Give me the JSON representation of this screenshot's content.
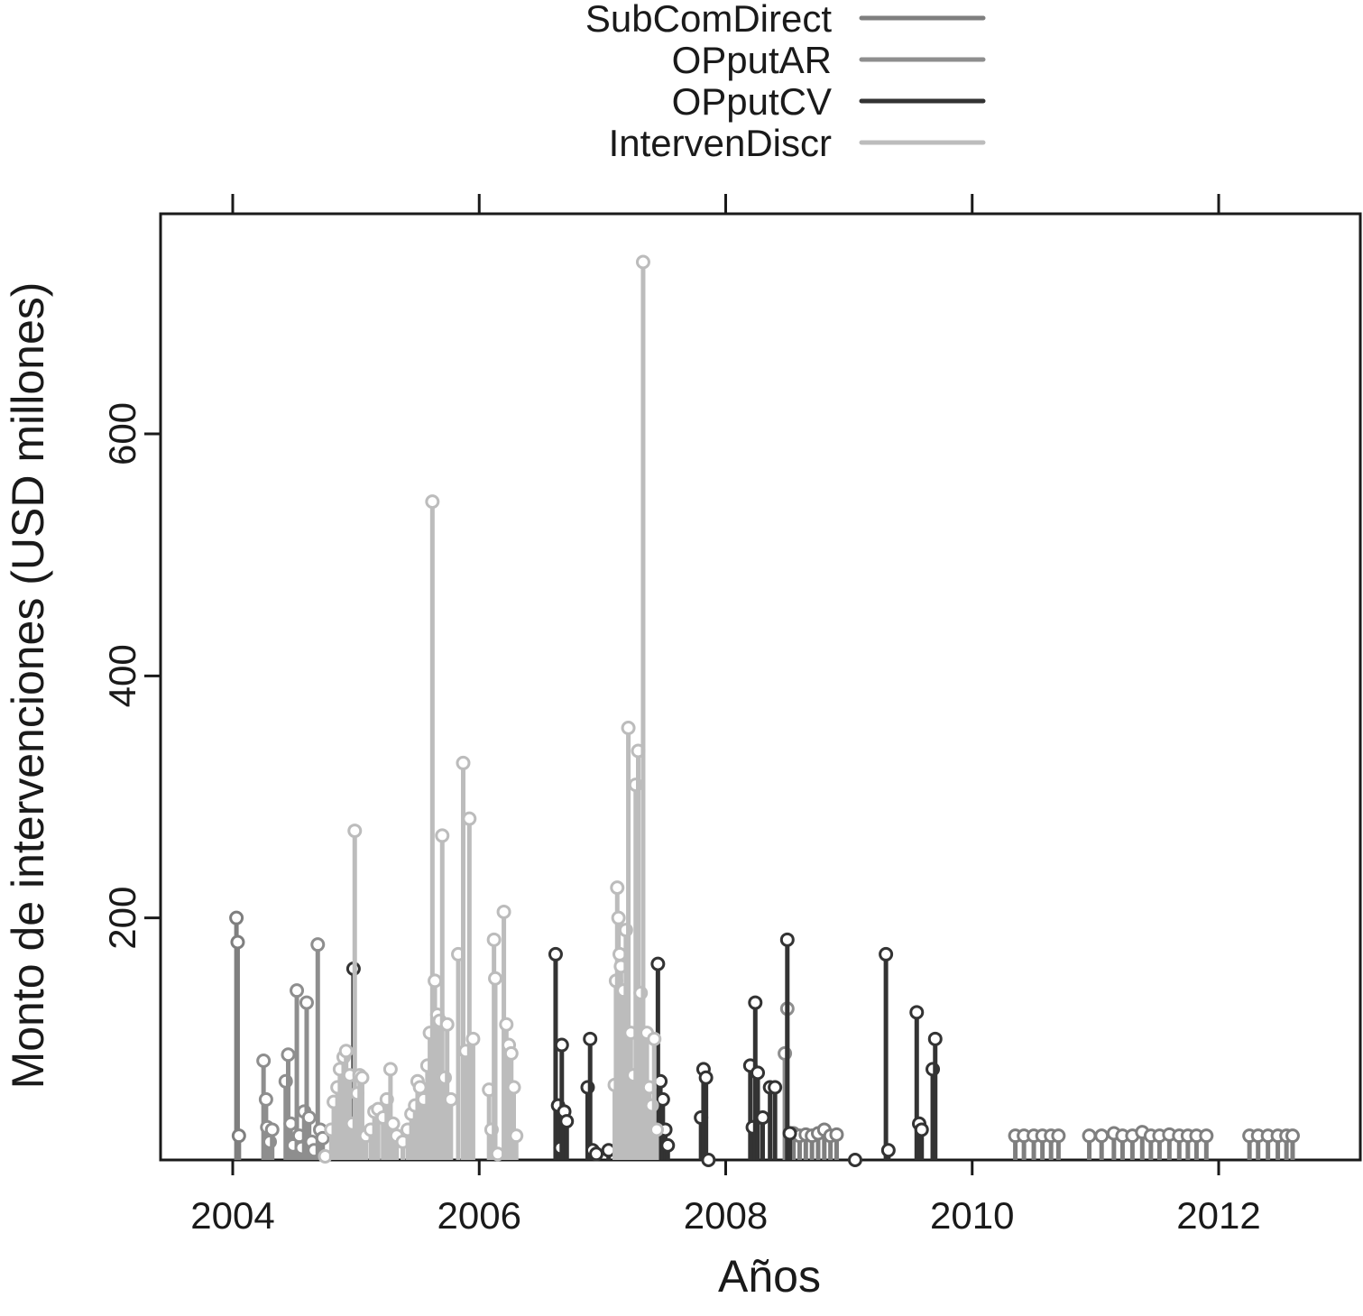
{
  "chart_data": {
    "type": "scatter",
    "title": "",
    "xlabel": "Años",
    "ylabel": "Monto de intervenciones (USD millones)",
    "xlim": [
      2003.4,
      2013.1
    ],
    "ylim": [
      0,
      780
    ],
    "xticks": [
      2004,
      2006,
      2008,
      2010,
      2012
    ],
    "xtick_labels": [
      "2004",
      "2006",
      "2008",
      "2010",
      "2012"
    ],
    "yticks": [
      200,
      400,
      600
    ],
    "ytick_labels": [
      "200",
      "400",
      "600"
    ],
    "top_ticks": true,
    "grid": false,
    "legend_position": "top",
    "mark_style": "vertical lines from zero, open circle at each value",
    "series": [
      {
        "name": "SubComDirect",
        "color": "#7f7f7f",
        "points": [
          [
            2004.03,
            200
          ],
          [
            2004.04,
            180
          ],
          [
            2004.05,
            20
          ],
          [
            2008.55,
            22
          ],
          [
            2008.6,
            20
          ],
          [
            2008.65,
            21
          ],
          [
            2008.7,
            20
          ],
          [
            2008.75,
            22
          ],
          [
            2008.8,
            25
          ],
          [
            2008.85,
            20
          ],
          [
            2008.9,
            21
          ],
          [
            2010.35,
            20
          ],
          [
            2010.42,
            20
          ],
          [
            2010.5,
            20
          ],
          [
            2010.57,
            20
          ],
          [
            2010.64,
            20
          ],
          [
            2010.7,
            20
          ],
          [
            2010.95,
            20
          ],
          [
            2011.05,
            20
          ],
          [
            2011.15,
            22
          ],
          [
            2011.22,
            20
          ],
          [
            2011.3,
            20
          ],
          [
            2011.38,
            23
          ],
          [
            2011.45,
            20
          ],
          [
            2011.52,
            20
          ],
          [
            2011.6,
            21
          ],
          [
            2011.68,
            20
          ],
          [
            2011.75,
            20
          ],
          [
            2011.82,
            20
          ],
          [
            2011.9,
            20
          ],
          [
            2012.25,
            20
          ],
          [
            2012.32,
            20
          ],
          [
            2012.4,
            20
          ],
          [
            2012.48,
            20
          ],
          [
            2012.55,
            20
          ],
          [
            2012.6,
            20
          ]
        ]
      },
      {
        "name": "OPputAR",
        "color": "#8e8e8e",
        "points": [
          [
            2004.25,
            82
          ],
          [
            2004.27,
            50
          ],
          [
            2004.28,
            27
          ],
          [
            2004.3,
            15
          ],
          [
            2004.32,
            25
          ],
          [
            2004.43,
            65
          ],
          [
            2004.45,
            87
          ],
          [
            2004.47,
            30
          ],
          [
            2004.49,
            12
          ],
          [
            2004.52,
            140
          ],
          [
            2004.54,
            20
          ],
          [
            2004.56,
            10
          ],
          [
            2004.58,
            40
          ],
          [
            2004.6,
            130
          ],
          [
            2004.62,
            35
          ],
          [
            2004.64,
            15
          ],
          [
            2004.66,
            8
          ],
          [
            2004.69,
            178
          ],
          [
            2004.71,
            25
          ],
          [
            2004.73,
            18
          ],
          [
            2008.48,
            88
          ],
          [
            2008.5,
            125
          ]
        ]
      },
      {
        "name": "OPputCV",
        "color": "#333333",
        "points": [
          [
            2004.98,
            158
          ],
          [
            2006.62,
            170
          ],
          [
            2006.64,
            45
          ],
          [
            2006.66,
            10
          ],
          [
            2006.67,
            95
          ],
          [
            2006.69,
            40
          ],
          [
            2006.71,
            32
          ],
          [
            2006.88,
            60
          ],
          [
            2006.9,
            100
          ],
          [
            2006.92,
            8
          ],
          [
            2006.95,
            5
          ],
          [
            2007.05,
            8
          ],
          [
            2007.45,
            162
          ],
          [
            2007.47,
            65
          ],
          [
            2007.49,
            50
          ],
          [
            2007.51,
            25
          ],
          [
            2007.53,
            12
          ],
          [
            2007.8,
            35
          ],
          [
            2007.82,
            75
          ],
          [
            2007.84,
            68
          ],
          [
            2007.86,
            0
          ],
          [
            2008.2,
            78
          ],
          [
            2008.22,
            27
          ],
          [
            2008.24,
            130
          ],
          [
            2008.26,
            72
          ],
          [
            2008.3,
            35
          ],
          [
            2008.36,
            60
          ],
          [
            2008.4,
            60
          ],
          [
            2008.5,
            182
          ],
          [
            2008.52,
            22
          ],
          [
            2009.05,
            0
          ],
          [
            2009.3,
            170
          ],
          [
            2009.32,
            8
          ],
          [
            2009.55,
            122
          ],
          [
            2009.57,
            30
          ],
          [
            2009.59,
            25
          ],
          [
            2009.68,
            75
          ],
          [
            2009.7,
            100
          ]
        ]
      },
      {
        "name": "IntervenDiscr",
        "color": "#bcbcbc",
        "points": [
          [
            2004.75,
            3
          ],
          [
            2004.8,
            25
          ],
          [
            2004.82,
            48
          ],
          [
            2004.85,
            60
          ],
          [
            2004.87,
            75
          ],
          [
            2004.9,
            85
          ],
          [
            2004.92,
            90
          ],
          [
            2004.95,
            70
          ],
          [
            2004.97,
            30
          ],
          [
            2004.99,
            272
          ],
          [
            2005.01,
            55
          ],
          [
            2005.03,
            70
          ],
          [
            2005.05,
            68
          ],
          [
            2005.08,
            20
          ],
          [
            2005.12,
            25
          ],
          [
            2005.15,
            40
          ],
          [
            2005.18,
            42
          ],
          [
            2005.22,
            35
          ],
          [
            2005.25,
            50
          ],
          [
            2005.28,
            75
          ],
          [
            2005.3,
            30
          ],
          [
            2005.33,
            20
          ],
          [
            2005.38,
            15
          ],
          [
            2005.42,
            25
          ],
          [
            2005.45,
            38
          ],
          [
            2005.48,
            45
          ],
          [
            2005.5,
            65
          ],
          [
            2005.52,
            60
          ],
          [
            2005.55,
            50
          ],
          [
            2005.58,
            78
          ],
          [
            2005.6,
            105
          ],
          [
            2005.62,
            544
          ],
          [
            2005.64,
            148
          ],
          [
            2005.66,
            120
          ],
          [
            2005.68,
            115
          ],
          [
            2005.7,
            268
          ],
          [
            2005.72,
            68
          ],
          [
            2005.74,
            112
          ],
          [
            2005.77,
            50
          ],
          [
            2005.83,
            170
          ],
          [
            2005.87,
            328
          ],
          [
            2005.89,
            90
          ],
          [
            2005.92,
            282
          ],
          [
            2005.95,
            100
          ],
          [
            2006.08,
            58
          ],
          [
            2006.1,
            25
          ],
          [
            2006.12,
            182
          ],
          [
            2006.13,
            150
          ],
          [
            2006.15,
            5
          ],
          [
            2006.2,
            205
          ],
          [
            2006.22,
            112
          ],
          [
            2006.24,
            95
          ],
          [
            2006.26,
            88
          ],
          [
            2006.28,
            60
          ],
          [
            2006.3,
            20
          ],
          [
            2007.1,
            62
          ],
          [
            2007.11,
            148
          ],
          [
            2007.12,
            225
          ],
          [
            2007.13,
            200
          ],
          [
            2007.14,
            170
          ],
          [
            2007.15,
            160
          ],
          [
            2007.17,
            140
          ],
          [
            2007.19,
            190
          ],
          [
            2007.21,
            357
          ],
          [
            2007.23,
            105
          ],
          [
            2007.25,
            70
          ],
          [
            2007.27,
            310
          ],
          [
            2007.29,
            338
          ],
          [
            2007.31,
            138
          ],
          [
            2007.33,
            742
          ],
          [
            2007.36,
            105
          ],
          [
            2007.38,
            60
          ],
          [
            2007.4,
            45
          ],
          [
            2007.42,
            100
          ],
          [
            2007.44,
            25
          ]
        ]
      }
    ]
  }
}
